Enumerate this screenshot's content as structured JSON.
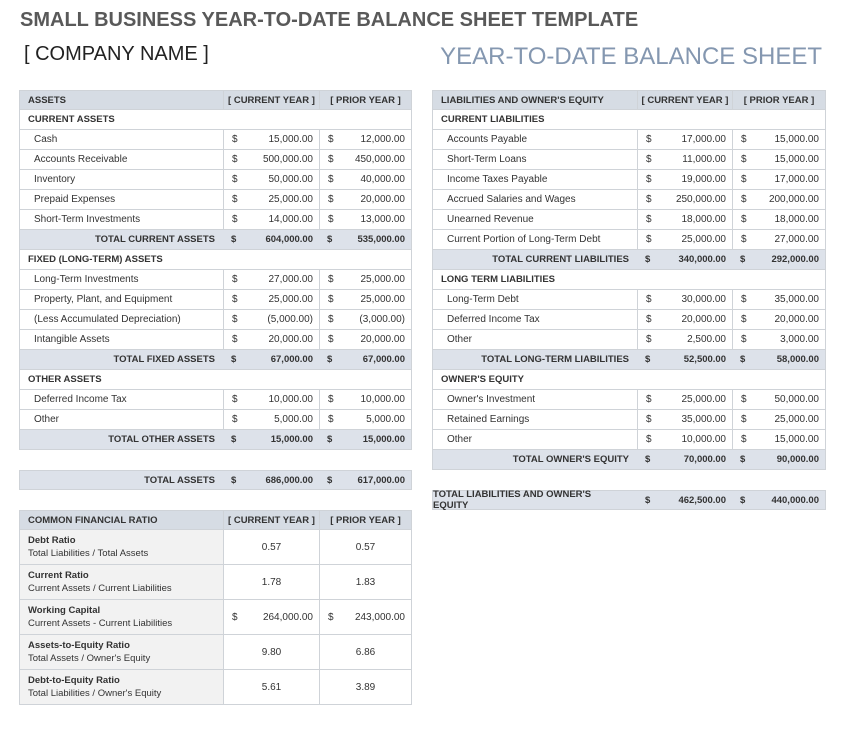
{
  "title": "SMALL BUSINESS YEAR-TO-DATE BALANCE SHEET TEMPLATE",
  "company": "[ COMPANY NAME ]",
  "subtitle": "YEAR-TO-DATE BALANCE SHEET",
  "currency": "$",
  "assets": {
    "header": [
      "ASSETS",
      "[ CURRENT YEAR ]",
      "[ PRIOR YEAR ]"
    ],
    "sections": [
      {
        "title": "CURRENT ASSETS",
        "items": [
          [
            "Cash",
            "15,000.00",
            "12,000.00"
          ],
          [
            "Accounts Receivable",
            "500,000.00",
            "450,000.00"
          ],
          [
            "Inventory",
            "50,000.00",
            "40,000.00"
          ],
          [
            "Prepaid Expenses",
            "25,000.00",
            "20,000.00"
          ],
          [
            "Short-Term Investments",
            "14,000.00",
            "13,000.00"
          ]
        ],
        "total": [
          "TOTAL CURRENT ASSETS",
          "604,000.00",
          "535,000.00"
        ]
      },
      {
        "title": "FIXED (LONG-TERM) ASSETS",
        "items": [
          [
            "Long-Term Investments",
            "27,000.00",
            "25,000.00"
          ],
          [
            "Property, Plant, and Equipment",
            "25,000.00",
            "25,000.00"
          ],
          [
            "(Less Accumulated Depreciation)",
            "(5,000.00)",
            "(3,000.00)"
          ],
          [
            "Intangible Assets",
            "20,000.00",
            "20,000.00"
          ]
        ],
        "total": [
          "TOTAL FIXED ASSETS",
          "67,000.00",
          "67,000.00"
        ]
      },
      {
        "title": "OTHER ASSETS",
        "items": [
          [
            "Deferred Income Tax",
            "10,000.00",
            "10,000.00"
          ],
          [
            "Other",
            "5,000.00",
            "5,000.00"
          ]
        ],
        "total": [
          "TOTAL OTHER ASSETS",
          "15,000.00",
          "15,000.00"
        ]
      }
    ],
    "grand_total": [
      "TOTAL ASSETS",
      "686,000.00",
      "617,000.00"
    ]
  },
  "liabilities": {
    "header": [
      "LIABILITIES AND OWNER'S EQUITY",
      "[ CURRENT YEAR ]",
      "[ PRIOR YEAR ]"
    ],
    "sections": [
      {
        "title": "CURRENT LIABILITIES",
        "items": [
          [
            "Accounts Payable",
            "17,000.00",
            "15,000.00"
          ],
          [
            "Short-Term Loans",
            "11,000.00",
            "15,000.00"
          ],
          [
            "Income Taxes Payable",
            "19,000.00",
            "17,000.00"
          ],
          [
            "Accrued Salaries and Wages",
            "250,000.00",
            "200,000.00"
          ],
          [
            "Unearned Revenue",
            "18,000.00",
            "18,000.00"
          ],
          [
            "Current Portion of Long-Term Debt",
            "25,000.00",
            "27,000.00"
          ]
        ],
        "total": [
          "TOTAL CURRENT LIABILITIES",
          "340,000.00",
          "292,000.00"
        ]
      },
      {
        "title": "LONG TERM LIABILITIES",
        "items": [
          [
            "Long-Term Debt",
            "30,000.00",
            "35,000.00"
          ],
          [
            "Deferred Income Tax",
            "20,000.00",
            "20,000.00"
          ],
          [
            "Other",
            "2,500.00",
            "3,000.00"
          ]
        ],
        "total": [
          "TOTAL LONG-TERM LIABILITIES",
          "52,500.00",
          "58,000.00"
        ]
      },
      {
        "title": "OWNER'S EQUITY",
        "items": [
          [
            "Owner's Investment",
            "25,000.00",
            "50,000.00"
          ],
          [
            "Retained Earnings",
            "35,000.00",
            "25,000.00"
          ],
          [
            "Other",
            "10,000.00",
            "15,000.00"
          ]
        ],
        "total": [
          "TOTAL OWNER'S EQUITY",
          "70,000.00",
          "90,000.00"
        ]
      }
    ],
    "grand_total": [
      "TOTAL LIABILITIES AND OWNER'S EQUITY",
      "462,500.00",
      "440,000.00"
    ]
  },
  "ratios": {
    "header": [
      "COMMON FINANCIAL RATIO",
      "[ CURRENT YEAR ]",
      "[ PRIOR YEAR ]"
    ],
    "rows": [
      {
        "name": "Debt Ratio",
        "formula": "Total Liabilities / Total Assets",
        "current": "0.57",
        "prior": "0.57"
      },
      {
        "name": "Current Ratio",
        "formula": "Current Assets / Current Liabilities",
        "current": "1.78",
        "prior": "1.83"
      },
      {
        "name": "Working Capital",
        "formula": "Current Assets - Current Liabilities",
        "currency": "$",
        "current": "264,000.00",
        "prior": "243,000.00"
      },
      {
        "name": "Assets-to-Equity Ratio",
        "formula": "Total Assets / Owner's Equity",
        "current": "9.80",
        "prior": "6.86"
      },
      {
        "name": "Debt-to-Equity Ratio",
        "formula": "Total Liabilities / Owner's Equity",
        "current": "5.61",
        "prior": "3.89"
      }
    ]
  }
}
